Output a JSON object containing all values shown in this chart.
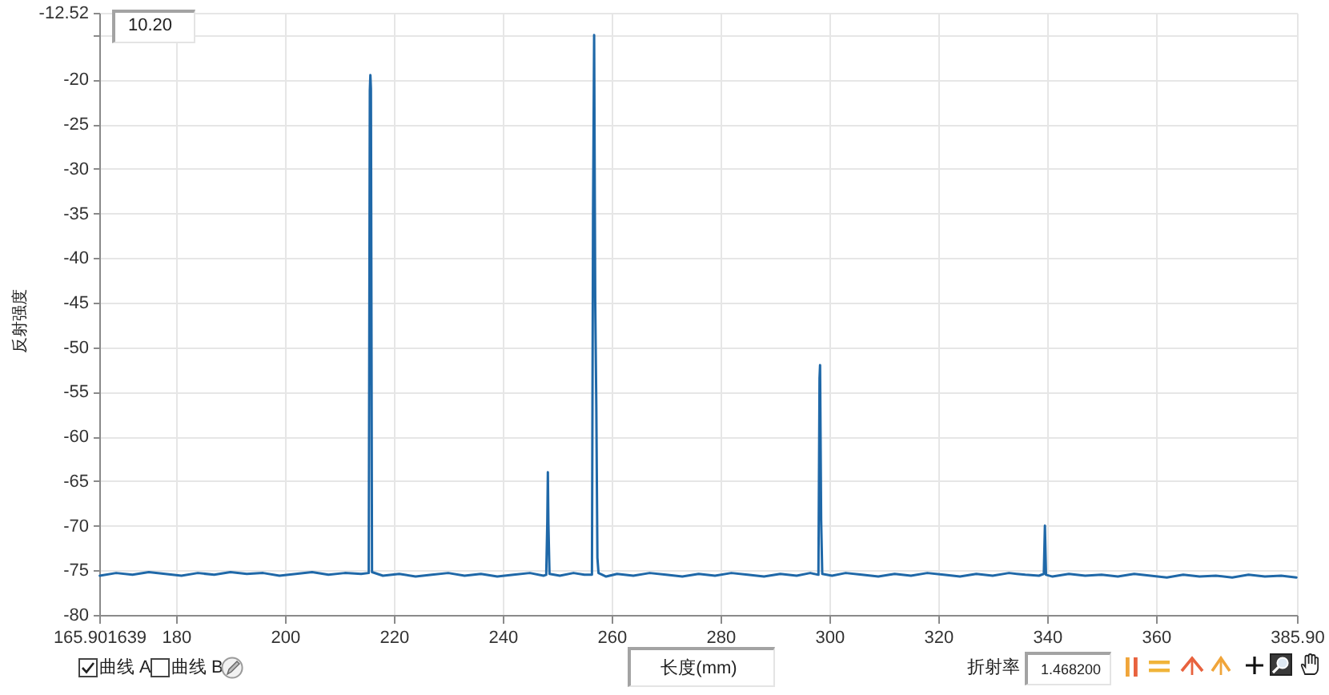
{
  "chart_data": {
    "type": "line",
    "xlabel": "长度(mm)",
    "ylabel": "反射强度",
    "annotations": [
      "10.20",
      "曲线 A",
      "曲线 B",
      "折射率",
      "1.468200"
    ],
    "x": [
      166,
      169,
      172,
      175,
      178,
      181,
      184,
      187,
      190,
      193,
      196,
      199,
      202,
      205,
      208,
      211,
      214,
      215.4,
      215.6,
      215.7,
      215.8,
      216.0,
      218,
      221,
      224,
      227,
      230,
      233,
      236,
      239,
      242,
      245,
      247.5,
      248.0,
      248.2,
      248.3,
      248.4,
      248.6,
      250.5,
      253,
      255,
      256.4,
      256.6,
      256.8,
      257.0,
      257.2,
      257.4,
      257.6,
      259,
      261,
      264,
      267,
      270,
      273,
      276,
      279,
      282,
      285,
      288,
      291,
      294,
      296.5,
      298.0,
      298.2,
      298.3,
      298.5,
      298.7,
      300.5,
      303,
      306,
      309,
      312,
      315,
      318,
      321,
      324,
      327,
      330,
      333,
      336,
      338.5,
      339.4,
      339.6,
      339.8,
      341,
      344,
      347,
      350,
      353,
      356,
      359,
      362,
      365,
      368,
      371,
      374,
      377,
      380,
      383,
      385.8
    ],
    "series": [
      {
        "color": "#1f68a8",
        "values": [
          -75.6,
          -75.3,
          -75.5,
          -75.2,
          -75.4,
          -75.6,
          -75.3,
          -75.5,
          -75.2,
          -75.4,
          -75.3,
          -75.6,
          -75.4,
          -75.2,
          -75.5,
          -75.3,
          -75.4,
          -75.3,
          -21.2,
          -19.5,
          -21.0,
          -75.2,
          -75.6,
          -75.4,
          -75.7,
          -75.5,
          -75.3,
          -75.6,
          -75.4,
          -75.7,
          -75.5,
          -75.3,
          -75.6,
          -75.5,
          -69.5,
          -64.0,
          -69.8,
          -75.4,
          -75.6,
          -75.3,
          -75.5,
          -75.5,
          -34.8,
          -15.0,
          -44.9,
          -56.7,
          -73.6,
          -75.3,
          -75.7,
          -75.4,
          -75.6,
          -75.3,
          -75.5,
          -75.7,
          -75.4,
          -75.6,
          -75.3,
          -75.5,
          -75.7,
          -75.4,
          -75.6,
          -75.3,
          -75.5,
          -53.5,
          -52.0,
          -69.4,
          -75.4,
          -75.6,
          -75.3,
          -75.5,
          -75.7,
          -75.4,
          -75.6,
          -75.3,
          -75.5,
          -75.7,
          -75.4,
          -75.6,
          -75.3,
          -75.5,
          -75.6,
          -75.4,
          -70.0,
          -75.5,
          -75.7,
          -75.4,
          -75.6,
          -75.5,
          -75.7,
          -75.4,
          -75.6,
          -75.8,
          -75.5,
          -75.7,
          -75.6,
          -75.8,
          -75.5,
          -75.7,
          -75.6,
          -75.8
        ]
      }
    ],
    "xlim": [
      165.901639,
      385.9
    ],
    "xticks": [
      165.901639,
      180,
      200,
      220,
      240,
      260,
      280,
      300,
      320,
      340,
      360,
      {
        "value": 385.9,
        "label": "385.90"
      }
    ],
    "ylim": [
      -80,
      -12.52
    ],
    "yticks": [
      -80,
      -75,
      -70,
      -65,
      -60,
      -55,
      -50,
      -45,
      -40,
      -35,
      -30,
      -25,
      -20,
      {
        "value": -15,
        "label": null
      },
      -12.52
    ],
    "grid": true,
    "marker": "none",
    "line_style": "solid"
  }
}
